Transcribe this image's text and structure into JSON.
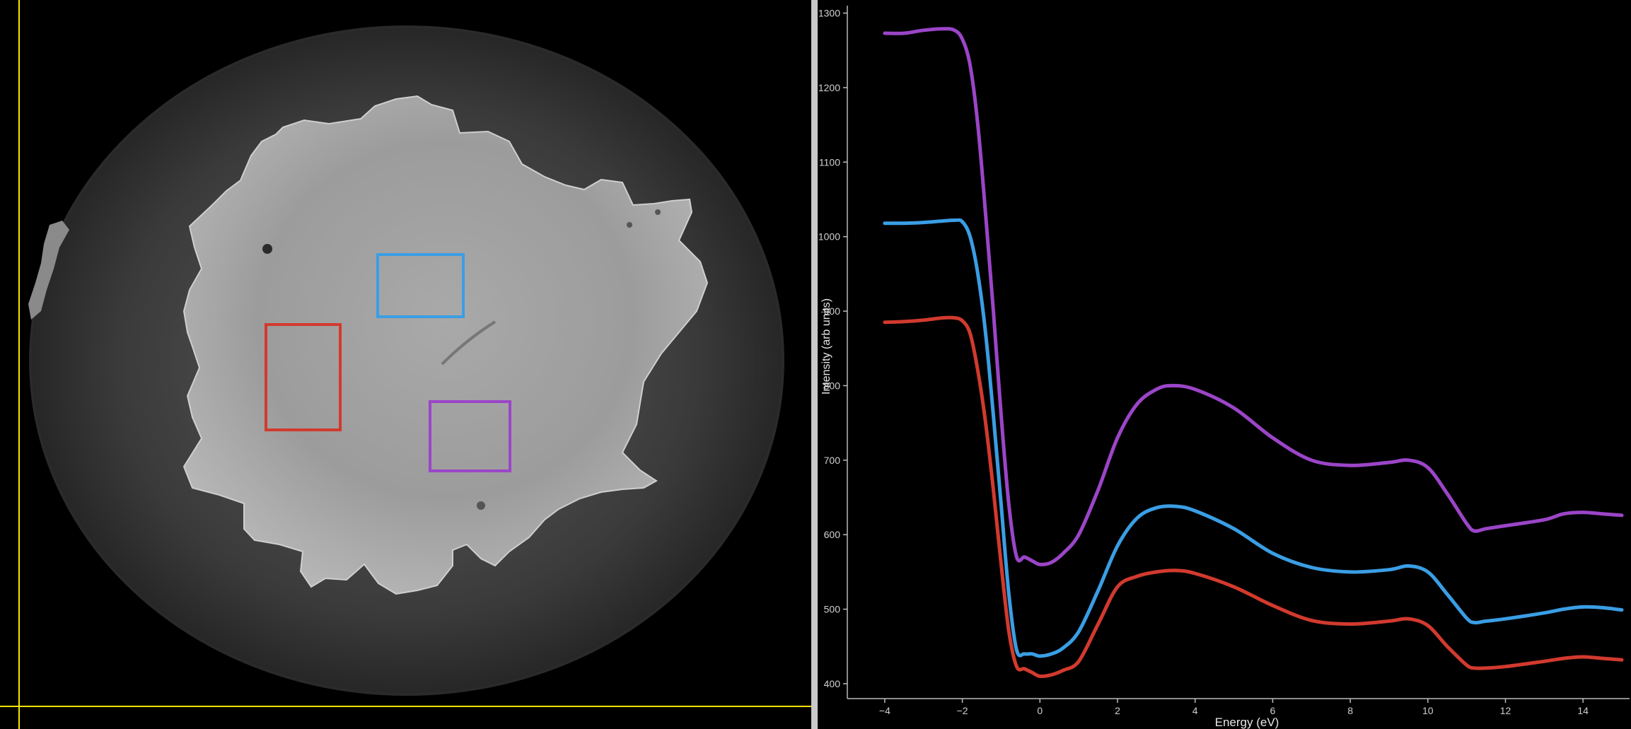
{
  "image_view": {
    "crosshair_color": "#f2e600",
    "roi_boxes": [
      {
        "name": "blue-roi",
        "color": "#3a9ee4"
      },
      {
        "name": "red-roi",
        "color": "#d23a2e"
      },
      {
        "name": "purple-roi",
        "color": "#9b45c8"
      }
    ]
  },
  "chart_data": {
    "type": "line",
    "title": "",
    "xlabel": "Energy (eV)",
    "ylabel": "Intensity (arb units)",
    "xlim": [
      -4.6,
      15.2
    ],
    "ylim": [
      380,
      1310
    ],
    "xticks": [
      -4,
      -2,
      0,
      2,
      4,
      6,
      8,
      10,
      12,
      14
    ],
    "yticks": [
      400,
      500,
      600,
      700,
      800,
      900,
      1000,
      1100,
      1200,
      1300
    ],
    "grid": false,
    "legend": "none",
    "series": [
      {
        "color": "#9b45c8",
        "x": [
          -4.0,
          -3.5,
          -3.0,
          -2.5,
          -2.2,
          -2.0,
          -1.8,
          -1.6,
          -1.4,
          -1.2,
          -1.0,
          -0.8,
          -0.6,
          -0.4,
          -0.2,
          0.0,
          0.3,
          0.6,
          1.0,
          1.5,
          2.0,
          2.5,
          3.0,
          3.4,
          4.0,
          5.0,
          6.0,
          7.0,
          8.0,
          9.0,
          9.5,
          10.0,
          10.5,
          11.0,
          11.2,
          11.5,
          12.0,
          13.0,
          13.5,
          14.0,
          14.5,
          15.0
        ],
        "values": [
          1273,
          1273,
          1277,
          1279,
          1277,
          1265,
          1230,
          1150,
          1030,
          900,
          760,
          640,
          570,
          570,
          565,
          560,
          563,
          575,
          600,
          660,
          730,
          775,
          795,
          800,
          795,
          770,
          730,
          700,
          693,
          697,
          700,
          690,
          655,
          615,
          605,
          608,
          612,
          620,
          628,
          630,
          628,
          626
        ]
      },
      {
        "color": "#3a9ee4",
        "x": [
          -4.0,
          -3.5,
          -3.0,
          -2.5,
          -2.2,
          -2.0,
          -1.8,
          -1.6,
          -1.4,
          -1.2,
          -1.0,
          -0.8,
          -0.6,
          -0.4,
          -0.2,
          0.0,
          0.3,
          0.6,
          1.0,
          1.5,
          2.0,
          2.5,
          3.0,
          3.5,
          4.0,
          5.0,
          6.0,
          7.0,
          8.0,
          9.0,
          9.5,
          10.0,
          10.5,
          11.0,
          11.2,
          11.5,
          12.0,
          13.0,
          13.5,
          14.0,
          14.5,
          15.0
        ],
        "values": [
          1018,
          1018,
          1019,
          1021,
          1022,
          1020,
          1000,
          950,
          870,
          760,
          640,
          520,
          445,
          440,
          440,
          437,
          440,
          448,
          470,
          525,
          585,
          622,
          636,
          638,
          632,
          608,
          575,
          556,
          550,
          553,
          558,
          550,
          520,
          488,
          482,
          484,
          487,
          495,
          500,
          503,
          502,
          499
        ]
      },
      {
        "color": "#d23a2e",
        "x": [
          -4.0,
          -3.5,
          -3.0,
          -2.5,
          -2.2,
          -2.0,
          -1.8,
          -1.6,
          -1.4,
          -1.2,
          -1.0,
          -0.8,
          -0.6,
          -0.4,
          -0.2,
          0.0,
          0.3,
          0.6,
          1.0,
          1.5,
          2.0,
          2.5,
          3.0,
          3.5,
          4.0,
          5.0,
          6.0,
          7.0,
          8.0,
          9.0,
          9.5,
          10.0,
          10.5,
          11.0,
          11.2,
          11.5,
          12.0,
          13.0,
          13.5,
          14.0,
          14.5,
          15.0
        ],
        "values": [
          885,
          886,
          888,
          891,
          891,
          887,
          870,
          820,
          750,
          660,
          560,
          470,
          423,
          420,
          415,
          410,
          412,
          418,
          430,
          480,
          530,
          544,
          550,
          552,
          548,
          530,
          505,
          485,
          480,
          484,
          487,
          478,
          450,
          425,
          421,
          421,
          423,
          430,
          434,
          436,
          434,
          432
        ]
      }
    ]
  }
}
